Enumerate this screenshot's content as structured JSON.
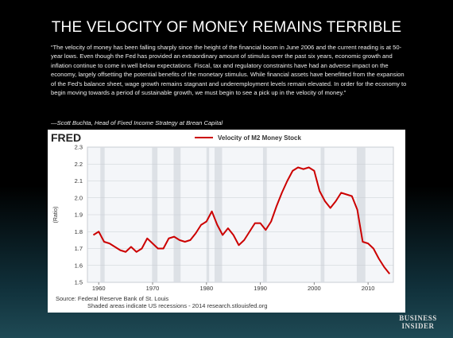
{
  "title": "THE VELOCITY OF MONEY REMAINS TERRIBLE",
  "quote": "“The velocity of money has been falling sharply since the height of the financial boom in June 2006 and the current reading is at 50-year lows. Even though the Fed has provided an extraordinary amount of stimulus over the past six years, economic growth and inflation continue to come in well below expectations. Fiscal, tax and regulatory constraints have had an adverse impact on the economy, largely offsetting the potential benefits of the monetary stimulus. While financial assets have benefitted from the expansion of the Fed’s balance sheet, wage growth remains stagnant and underemployment levels remain elevated. In order for the economy to begin moving towards a period of sustainable growth, we must begin to see a pick up in the velocity of money.”",
  "attribution": "—Scott Buchta, Head of Fixed Income Strategy at Brean Capital",
  "brand": "BUSINESS INSIDER",
  "chart_data": {
    "type": "line",
    "logo": "FRED",
    "title": "Velocity of M2 Money Stock",
    "y_label": "(Ratio)",
    "source": "Source: Federal Reserve Bank of St. Louis",
    "note": "Shaded areas indicate US recessions - 2014 research.stlouisfed.org",
    "x": [
      1959,
      1960,
      1961,
      1962,
      1963,
      1964,
      1965,
      1966,
      1967,
      1968,
      1969,
      1970,
      1971,
      1972,
      1973,
      1974,
      1975,
      1976,
      1977,
      1978,
      1979,
      1980,
      1981,
      1982,
      1983,
      1984,
      1985,
      1986,
      1987,
      1988,
      1989,
      1990,
      1991,
      1992,
      1993,
      1994,
      1995,
      1996,
      1997,
      1998,
      1999,
      2000,
      2001,
      2002,
      2003,
      2004,
      2005,
      2006,
      2007,
      2008,
      2009,
      2010,
      2011,
      2012,
      2013,
      2014
    ],
    "series": [
      {
        "name": "Velocity of M2 Money Stock",
        "color": "#cc0000",
        "values": [
          1.78,
          1.8,
          1.74,
          1.73,
          1.71,
          1.69,
          1.68,
          1.71,
          1.68,
          1.7,
          1.76,
          1.73,
          1.7,
          1.7,
          1.76,
          1.77,
          1.75,
          1.74,
          1.75,
          1.79,
          1.84,
          1.86,
          1.92,
          1.84,
          1.78,
          1.82,
          1.78,
          1.72,
          1.75,
          1.8,
          1.85,
          1.85,
          1.81,
          1.86,
          1.95,
          2.03,
          2.1,
          2.16,
          2.18,
          2.17,
          2.18,
          2.16,
          2.04,
          1.98,
          1.94,
          1.98,
          2.03,
          2.02,
          2.01,
          1.93,
          1.74,
          1.73,
          1.7,
          1.64,
          1.59,
          1.55
        ]
      }
    ],
    "recessions": [
      [
        1960.3,
        1961.1
      ],
      [
        1969.9,
        1970.9
      ],
      [
        1973.9,
        1975.2
      ],
      [
        1980.0,
        1980.5
      ],
      [
        1981.5,
        1982.9
      ],
      [
        1990.5,
        1991.2
      ],
      [
        2001.2,
        2001.9
      ],
      [
        2007.9,
        2009.5
      ]
    ],
    "xlim": [
      1957.9,
      2014.7
    ],
    "xticks": [
      1960,
      1970,
      1980,
      1990,
      2000,
      2010
    ],
    "ylim": [
      1.5,
      2.3
    ],
    "yticks": [
      1.5,
      1.6,
      1.7,
      1.8,
      1.9,
      {
        "value": 2,
        "label": "2.0"
      },
      2.1,
      2.2,
      2.3
    ],
    "grid": true
  }
}
